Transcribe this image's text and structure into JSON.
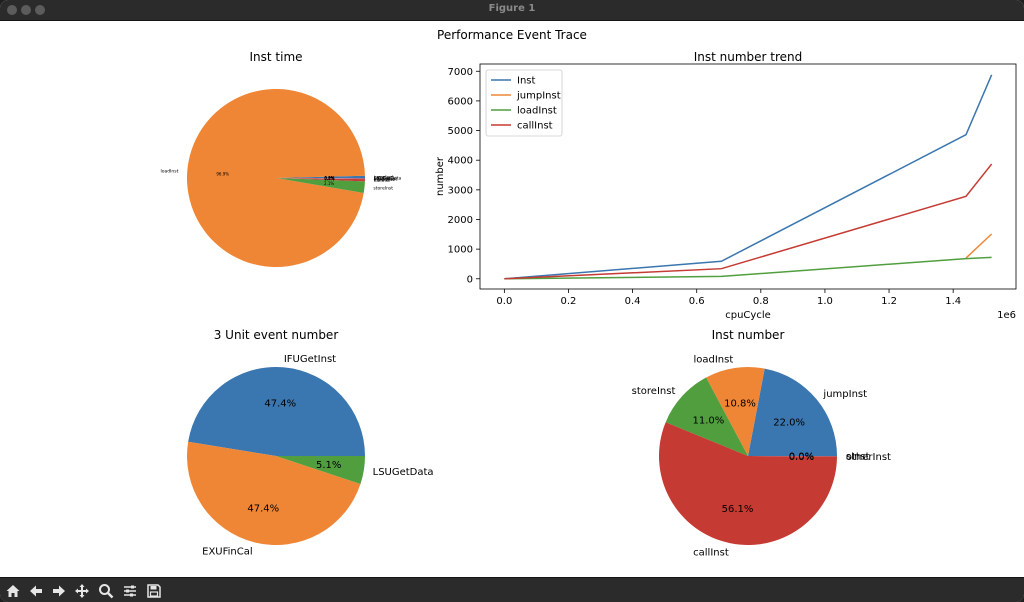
{
  "window": {
    "title": "Figure 1"
  },
  "figure": {
    "suptitle": "Performance Event Trace"
  },
  "toolbar": {
    "buttons": [
      {
        "name": "home-icon"
      },
      {
        "name": "back-icon"
      },
      {
        "name": "forward-icon"
      },
      {
        "name": "pan-icon"
      },
      {
        "name": "zoom-icon"
      },
      {
        "name": "configure-subplots-icon"
      },
      {
        "name": "save-icon"
      }
    ]
  },
  "chart_data": [
    {
      "id": "inst-time",
      "type": "pie",
      "title": "Inst time",
      "labels": [
        "jumpInst",
        "loadInst",
        "storeInst",
        "callInst",
        "otherInst",
        "IFUGetInst",
        "EXUFinCal",
        "LSUGetData"
      ],
      "values": [
        0.4,
        96.9,
        2.1,
        0.4,
        0.0,
        0.1,
        0.1,
        0.0
      ],
      "autopct": [
        "0.4%",
        "96.9%",
        "2.1%",
        "0.4%",
        "0.0%",
        "0.1%",
        "0.1%",
        "0.0%"
      ],
      "colors": [
        "#1f77b4",
        "#ff7f0e",
        "#2ca02c",
        "#d62728",
        "#9467bd",
        "#8c564b",
        "#e377c2",
        "#7f7f7f"
      ],
      "startangle": 0
    },
    {
      "id": "inst-number-trend",
      "type": "line",
      "title": "Inst number trend",
      "xlabel": "cpuCycle",
      "ylabel": "number",
      "x_offset_text": "1e6",
      "xlim": [
        -0.076,
        1.596
      ],
      "ylim": [
        -345,
        7245
      ],
      "xticks": [
        0.0,
        0.2,
        0.4,
        0.6,
        0.8,
        1.0,
        1.2,
        1.4
      ],
      "xtick_labels": [
        "0.0",
        "0.2",
        "0.4",
        "0.6",
        "0.8",
        "1.0",
        "1.2",
        "1.4"
      ],
      "yticks": [
        0,
        1000,
        2000,
        3000,
        4000,
        5000,
        6000,
        7000
      ],
      "ytick_labels": [
        "0",
        "1000",
        "2000",
        "3000",
        "4000",
        "5000",
        "6000",
        "7000"
      ],
      "legend": "upper left",
      "series": [
        {
          "name": "Inst",
          "color": "#1f77b4",
          "x": [
            0,
            0.677,
            1.44,
            1.52
          ],
          "y": [
            0,
            590,
            4860,
            6880
          ]
        },
        {
          "name": "jumpInst",
          "color": "#ff7f0e",
          "x": [
            1.44,
            1.52
          ],
          "y": [
            700,
            1510
          ]
        },
        {
          "name": "loadInst",
          "color": "#2ca02c",
          "x": [
            0,
            0.677,
            1.44,
            1.52
          ],
          "y": [
            0,
            80,
            680,
            720
          ]
        },
        {
          "name": "callInst",
          "color": "#d62728",
          "x": [
            0,
            0.677,
            1.44,
            1.52
          ],
          "y": [
            0,
            340,
            2780,
            3870
          ]
        }
      ]
    },
    {
      "id": "unit-event-number",
      "type": "pie",
      "title": "3 Unit event number",
      "labels": [
        "IFUGetInst",
        "EXUFinCal",
        "LSUGetData"
      ],
      "values": [
        47.4,
        47.4,
        5.1
      ],
      "autopct": [
        "47.4%",
        "47.4%",
        "5.1%"
      ],
      "colors": [
        "#1f77b4",
        "#ff7f0e",
        "#2ca02c"
      ],
      "startangle": 0
    },
    {
      "id": "inst-number",
      "type": "pie",
      "title": "Inst number",
      "labels": [
        "jumpInst",
        "loadInst",
        "storeInst",
        "callInst",
        "otherInst",
        "sInst"
      ],
      "values": [
        22.0,
        10.8,
        11.0,
        56.1,
        0.05,
        0.05
      ],
      "autopct": [
        "22.0%",
        "10.8%",
        "11.0%",
        "56.1%",
        "0.0%",
        "0.0%"
      ],
      "colors": [
        "#1f77b4",
        "#ff7f0e",
        "#2ca02c",
        "#d62728",
        "#9467bd",
        "#8c564b"
      ],
      "startangle": 0
    }
  ]
}
